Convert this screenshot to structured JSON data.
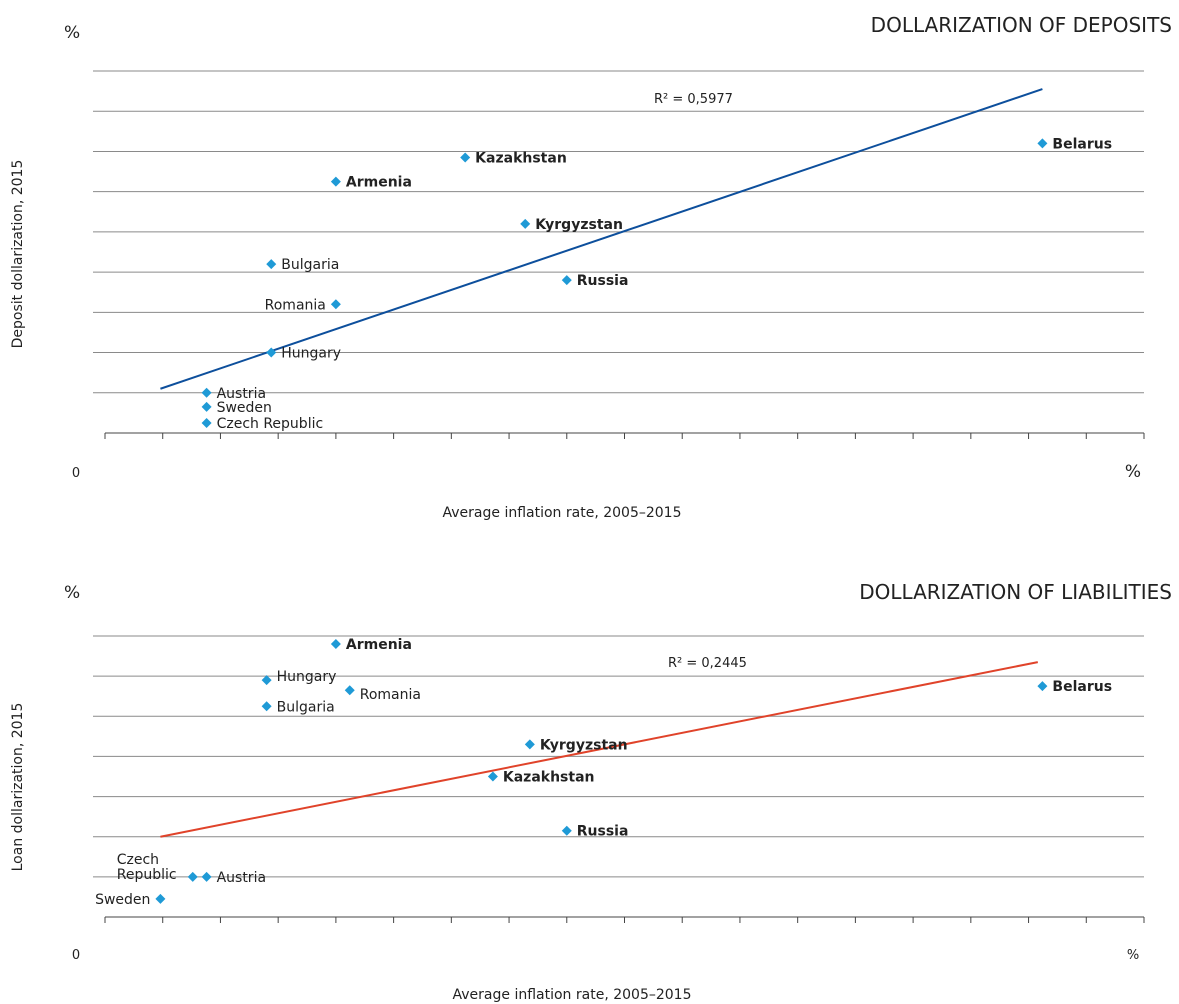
{
  "chart_data": [
    {
      "type": "scatter",
      "title": "DOLLARIZATION OF DEPOSITS",
      "xlabel": "Average inflation rate, 2005–2015",
      "ylabel": "Deposit dollarization, 2015",
      "y_unit": "%",
      "x_unit": "%",
      "x_origin_label": "0",
      "xlim": [
        0,
        22.5
      ],
      "ylim": [
        0,
        90
      ],
      "xticks": [
        5,
        10,
        15,
        20
      ],
      "yticks": [
        10,
        20,
        30,
        40,
        50,
        60,
        70,
        80,
        90
      ],
      "grid": true,
      "marker_color": "#1f9ad6",
      "trend_color": "#0d4f9c",
      "r_squared_label": "R² = 0,5977",
      "trendline": {
        "x": [
          1.2,
          20.3
        ],
        "y": [
          11,
          85.5
        ]
      },
      "points": [
        {
          "name": "Belarus",
          "x": 20.3,
          "y": 72,
          "bold": true,
          "label_side": "right"
        },
        {
          "name": "Kazakhstan",
          "x": 7.8,
          "y": 68.5,
          "bold": true,
          "label_side": "right"
        },
        {
          "name": "Armenia",
          "x": 5.0,
          "y": 62.5,
          "bold": true,
          "label_side": "right"
        },
        {
          "name": "Kyrgyzstan",
          "x": 9.1,
          "y": 52,
          "bold": true,
          "label_side": "right"
        },
        {
          "name": "Bulgaria",
          "x": 3.6,
          "y": 42,
          "bold": false,
          "label_side": "right"
        },
        {
          "name": "Russia",
          "x": 10.0,
          "y": 38,
          "bold": true,
          "label_side": "right"
        },
        {
          "name": "Romania",
          "x": 5.0,
          "y": 32,
          "bold": false,
          "label_side": "left"
        },
        {
          "name": "Hungary",
          "x": 3.6,
          "y": 20,
          "bold": false,
          "label_side": "right"
        },
        {
          "name": "Austria",
          "x": 2.2,
          "y": 10,
          "bold": false,
          "label_side": "right"
        },
        {
          "name": "Sweden",
          "x": 2.2,
          "y": 6.5,
          "bold": false,
          "label_side": "right"
        },
        {
          "name": "Czech Republic",
          "x": 2.2,
          "y": 2.5,
          "bold": false,
          "label_side": "right"
        }
      ]
    },
    {
      "type": "scatter",
      "title": "DOLLARIZATION OF LIABILITIES",
      "xlabel": "Average inflation rate, 2005–2015",
      "ylabel": "Loan dollarization, 2015",
      "y_unit": "%",
      "x_unit": "%",
      "x_origin_label": "0",
      "xlim": [
        0,
        22.5
      ],
      "ylim": [
        0,
        70
      ],
      "xticks": [
        5,
        10,
        15,
        20
      ],
      "yticks": [
        10,
        20,
        30,
        40,
        50,
        60,
        70
      ],
      "grid": true,
      "marker_color": "#1f9ad6",
      "trend_color": "#e0432a",
      "r_squared_label": "R² = 0,2445",
      "trendline": {
        "x": [
          1.2,
          20.2
        ],
        "y": [
          20,
          63.5
        ]
      },
      "points": [
        {
          "name": "Armenia",
          "x": 5.0,
          "y": 68,
          "bold": true,
          "label_side": "right"
        },
        {
          "name": "Hungary",
          "x": 3.5,
          "y": 59,
          "bold": false,
          "label_side": "right-up"
        },
        {
          "name": "Romania",
          "x": 5.3,
          "y": 56.5,
          "bold": false,
          "label_side": "right-down"
        },
        {
          "name": "Belarus",
          "x": 20.3,
          "y": 57.5,
          "bold": true,
          "label_side": "right"
        },
        {
          "name": "Bulgaria",
          "x": 3.5,
          "y": 52.5,
          "bold": false,
          "label_side": "right"
        },
        {
          "name": "Kyrgyzstan",
          "x": 9.2,
          "y": 43,
          "bold": true,
          "label_side": "right"
        },
        {
          "name": "Kazakhstan",
          "x": 8.4,
          "y": 35,
          "bold": true,
          "label_side": "right"
        },
        {
          "name": "Russia",
          "x": 10.0,
          "y": 21.5,
          "bold": true,
          "label_side": "right"
        },
        {
          "name": "Czech Republic",
          "label_lines": [
            "Czech",
            "Republic"
          ],
          "x": 1.9,
          "y": 10,
          "bold": false,
          "label_side": "left"
        },
        {
          "name": "Austria",
          "x": 2.2,
          "y": 10,
          "bold": false,
          "label_side": "right"
        },
        {
          "name": "Sweden",
          "x": 1.2,
          "y": 4.5,
          "bold": false,
          "label_side": "left"
        }
      ]
    }
  ]
}
